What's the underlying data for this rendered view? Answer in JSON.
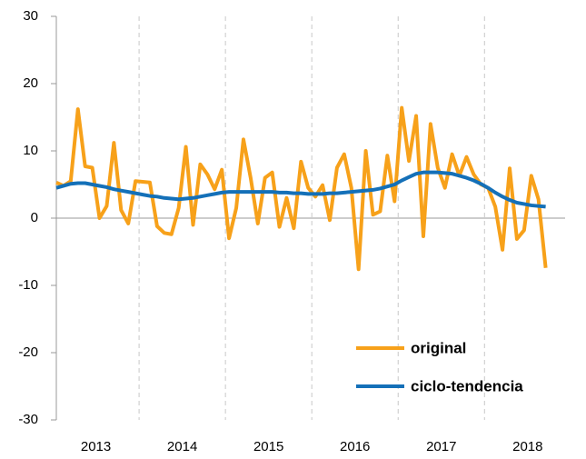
{
  "chart_data": {
    "type": "line",
    "x": [
      0,
      1,
      2,
      3,
      4,
      5,
      6,
      7,
      8,
      9,
      10,
      11,
      12,
      13,
      14,
      15,
      16,
      17,
      18,
      19,
      20,
      21,
      22,
      23,
      24,
      25,
      26,
      27,
      28,
      29,
      30,
      31,
      32,
      33,
      34,
      35,
      36,
      37,
      38,
      39,
      40,
      41,
      42,
      43,
      44,
      45,
      46,
      47,
      48,
      49,
      50,
      51,
      52,
      53,
      54,
      55,
      56,
      57,
      58,
      59,
      60,
      61,
      62,
      63,
      64,
      65,
      66,
      67,
      68
    ],
    "series": [
      {
        "name": "original",
        "color": "#f7a11a",
        "values": [
          5.3,
          4.8,
          5.5,
          16.2,
          7.7,
          7.5,
          0,
          1.8,
          11.2,
          1.2,
          -0.8,
          5.5,
          5.4,
          5.3,
          -1.2,
          -2.2,
          -2.4,
          1.5,
          10.6,
          -1.0,
          8.0,
          6.5,
          4.3,
          7.2,
          -3.0,
          1.5,
          11.7,
          6.0,
          -0.8,
          6.0,
          6.8,
          -1.3,
          3.0,
          -1.5,
          8.4,
          4.5,
          3.2,
          4.9,
          -0.3,
          7.5,
          9.5,
          4.5,
          -7.6,
          10.0,
          0.5,
          1.0,
          9.3,
          2.5,
          16.4,
          8.5,
          15.2,
          -2.7,
          14.0,
          7.5,
          4.5,
          9.5,
          6.3,
          9.1,
          6.5,
          5.0,
          4.5,
          1.7,
          -4.7,
          7.4,
          -3.1,
          -1.8,
          6.3,
          2.8,
          -7.4
        ]
      },
      {
        "name": "ciclo-tendencia",
        "color": "#1470b8",
        "values": [
          4.5,
          4.8,
          5.1,
          5.2,
          5.2,
          5.0,
          4.8,
          4.6,
          4.3,
          4.1,
          3.9,
          3.7,
          3.5,
          3.3,
          3.2,
          3.0,
          2.9,
          2.8,
          2.9,
          3.0,
          3.2,
          3.4,
          3.6,
          3.8,
          3.9,
          3.9,
          3.9,
          3.9,
          3.9,
          3.9,
          3.9,
          3.8,
          3.8,
          3.7,
          3.7,
          3.6,
          3.6,
          3.6,
          3.7,
          3.7,
          3.8,
          3.9,
          4.0,
          4.1,
          4.2,
          4.4,
          4.7,
          5.0,
          5.6,
          6.1,
          6.6,
          6.8,
          6.8,
          6.8,
          6.7,
          6.6,
          6.3,
          6.0,
          5.6,
          5.1,
          4.5,
          3.8,
          3.2,
          2.7,
          2.3,
          2.1,
          1.9,
          1.8,
          1.7
        ]
      }
    ],
    "xlim": [
      0,
      70.7
    ],
    "xticks": [
      {
        "value": 5.5,
        "label": "2013"
      },
      {
        "value": 17.5,
        "label": "2014"
      },
      {
        "value": 29.5,
        "label": "2015"
      },
      {
        "value": 41.5,
        "label": "2016"
      },
      {
        "value": 53.5,
        "label": "2017"
      },
      {
        "value": 65.5,
        "label": "2018"
      }
    ],
    "xgrid": [
      11.5,
      23.5,
      35.5,
      47.5,
      59.5
    ],
    "ylim": [
      -30,
      30
    ],
    "yticks": [
      -30,
      -20,
      -10,
      0,
      10,
      20,
      30
    ],
    "legend": "lower right"
  }
}
